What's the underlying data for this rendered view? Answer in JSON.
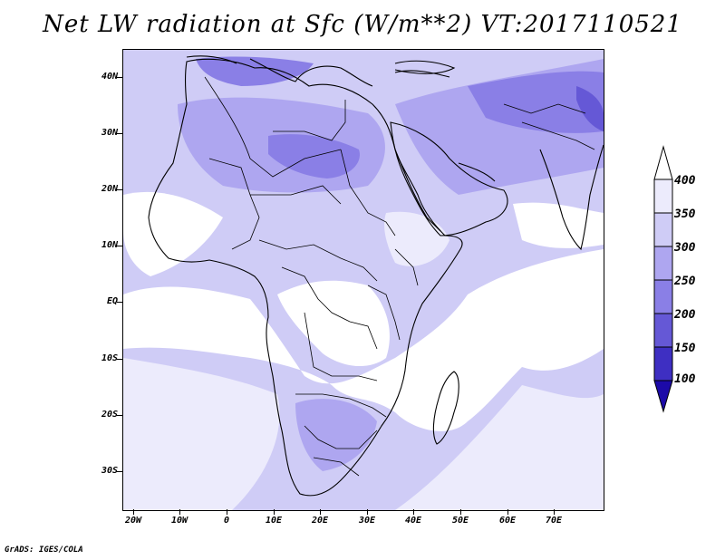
{
  "title": "Net LW radiation at Sfc (W/m**2) VT:2017110521",
  "credit": "GrADS: IGES/COLA",
  "map": {
    "lat_labels": [
      "40N",
      "30N",
      "20N",
      "10N",
      "EQ",
      "10S",
      "20S",
      "30S"
    ],
    "lon_labels": [
      "20W",
      "10W",
      "0",
      "10E",
      "20E",
      "30E",
      "40E",
      "50E",
      "60E",
      "70E"
    ],
    "extent": {
      "lon_min": -23,
      "lon_max": 80,
      "lat_min": -37,
      "lat_max": 45
    }
  },
  "colorbar": {
    "labels": [
      "400",
      "350",
      "300",
      "250",
      "200",
      "150",
      "100"
    ],
    "levels": [
      100,
      150,
      200,
      250,
      300,
      350,
      400
    ],
    "colors": [
      "#1c0aa8",
      "#3e2fc2",
      "#6558d6",
      "#8a7fe6",
      "#aea6f0",
      "#cfccf6",
      "#ecebfc",
      "#ffffff"
    ],
    "extend": "both"
  }
}
